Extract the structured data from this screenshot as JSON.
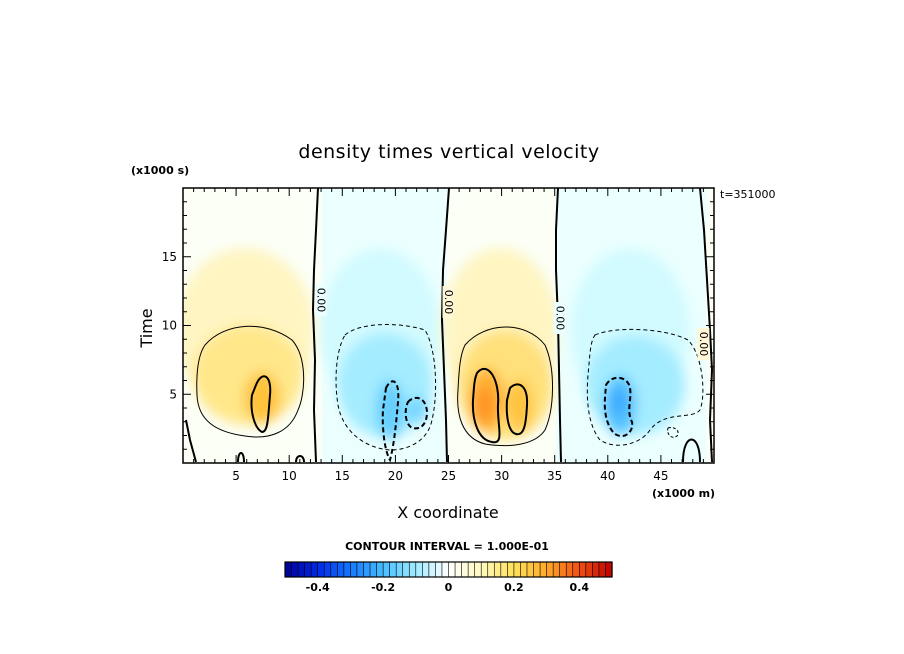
{
  "chart_data": {
    "type": "heatmap",
    "title": "density times vertical velocity",
    "xlabel": "X coordinate",
    "ylabel": "Time",
    "x_units": "(x1000 m)",
    "y_units": "(x1000 s)",
    "time_stamp": "t=351000",
    "xlim": [
      0,
      50
    ],
    "ylim": [
      0,
      20
    ],
    "x_ticks": [
      5,
      10,
      15,
      20,
      25,
      30,
      35,
      40,
      45
    ],
    "y_ticks": [
      5,
      10,
      15
    ],
    "contour_interval_text": "CONTOUR INTERVAL = 1.000E-01",
    "contour_interval": 0.1,
    "zero_contour_label": "0.00",
    "zero_contour_x": [
      13,
      25,
      35.5,
      49
    ],
    "colorbar": {
      "range": [
        -0.5,
        0.5
      ],
      "tick_values": [
        -0.4,
        -0.2,
        0,
        0.2,
        0.4
      ],
      "tick_labels": [
        "-0.4",
        "-0.2",
        "0",
        "0.2",
        "0.4"
      ]
    },
    "features": [
      {
        "sign": "positive",
        "x_center": 7.5,
        "y_center": 5,
        "peak": 0.32
      },
      {
        "sign": "negative",
        "x_center": 19.5,
        "y_center": 4,
        "peak": -0.26
      },
      {
        "sign": "positive",
        "x_center": 29.5,
        "y_center": 4.5,
        "peak": 0.38
      },
      {
        "sign": "negative",
        "x_center": 41,
        "y_center": 4,
        "peak": -0.33
      }
    ]
  }
}
